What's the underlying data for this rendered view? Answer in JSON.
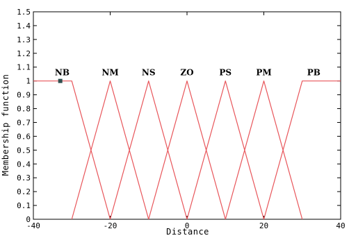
{
  "chart_data": {
    "type": "line",
    "xlabel": "Distance",
    "ylabel": "Membership function",
    "xlim": [
      -40,
      40
    ],
    "ylim": [
      0,
      1.5
    ],
    "x_ticks": [
      -40,
      -20,
      0,
      20,
      40
    ],
    "y_ticks": [
      0,
      0.1,
      0.2,
      0.3,
      0.4,
      0.5,
      0.6,
      0.7,
      0.8,
      0.9,
      1,
      1.1,
      1.2,
      1.3,
      1.4,
      1.5
    ],
    "x_tick_labels": [
      "-40",
      "-20",
      "0",
      "20",
      "40"
    ],
    "y_tick_labels": [
      "0",
      "0.1",
      "0.2",
      "0.3",
      "0.4",
      "0.5",
      "0.6",
      "0.7",
      "0.8",
      "0.9",
      "1",
      "1.1",
      "1.2",
      "1.3",
      "1.4",
      "1.5"
    ],
    "line_color": "#e8555a",
    "marker_color": "#2f4f4f",
    "series": [
      {
        "name": "NB",
        "x": [
          -40,
          -30,
          -20
        ],
        "y": [
          1,
          1,
          0
        ]
      },
      {
        "name": "NM",
        "x": [
          -30,
          -20,
          -10
        ],
        "y": [
          0,
          1,
          0
        ]
      },
      {
        "name": "NS",
        "x": [
          -20,
          -10,
          0
        ],
        "y": [
          0,
          1,
          0
        ]
      },
      {
        "name": "ZO",
        "x": [
          -10,
          0,
          10
        ],
        "y": [
          0,
          1,
          0
        ]
      },
      {
        "name": "PS",
        "x": [
          0,
          10,
          20
        ],
        "y": [
          0,
          1,
          0
        ]
      },
      {
        "name": "PM",
        "x": [
          10,
          20,
          30
        ],
        "y": [
          0,
          1,
          0
        ]
      },
      {
        "name": "PB",
        "x": [
          20,
          30,
          40
        ],
        "y": [
          0,
          1,
          1
        ]
      }
    ],
    "labels": [
      {
        "text": "NB",
        "x": -32.5,
        "y": 1.0
      },
      {
        "text": "NM",
        "x": -20,
        "y": 1.0
      },
      {
        "text": "NS",
        "x": -10,
        "y": 1.0
      },
      {
        "text": "ZO",
        "x": 0,
        "y": 1.0
      },
      {
        "text": "PS",
        "x": 10,
        "y": 1.0
      },
      {
        "text": "PM",
        "x": 20,
        "y": 1.0
      },
      {
        "text": "PB",
        "x": 33,
        "y": 1.0
      }
    ],
    "markers": [
      {
        "x": -33,
        "y": 1.0
      }
    ],
    "grid": false,
    "legend": "none"
  }
}
